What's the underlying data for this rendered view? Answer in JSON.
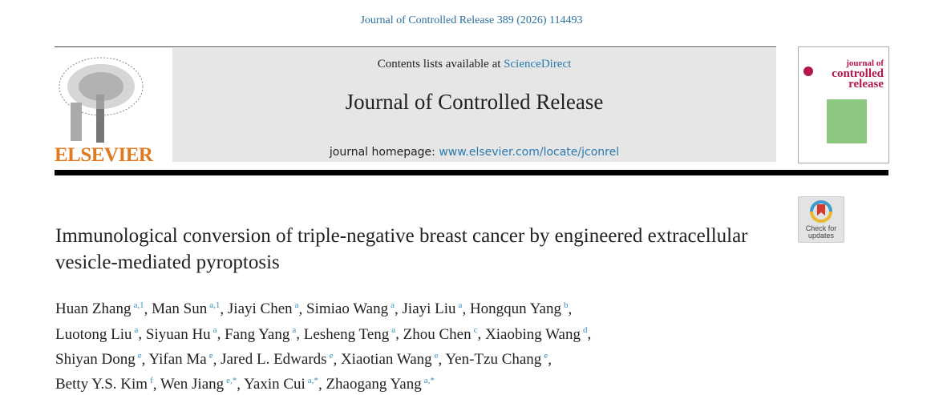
{
  "citation": "Journal of Controlled Release 389 (2026) 114493",
  "header": {
    "publisher_logo_text": "ELSEVIER",
    "contents_prefix": "Contents lists available at ",
    "contents_link": "ScienceDirect",
    "journal_title": "Journal of Controlled Release",
    "homepage_prefix": "journal homepage: ",
    "homepage_link": "www.elsevier.com/locate/jconrel",
    "cover_text": [
      "journal of",
      "controlled",
      "release"
    ]
  },
  "check_updates": {
    "line1": "Check for",
    "line2": "updates"
  },
  "article": {
    "title": "Immunological conversion of triple-negative breast cancer by engineered extracellular vesicle-mediated pyroptosis",
    "authors": [
      {
        "name": "Huan Zhang",
        "sup": "a,1"
      },
      {
        "name": "Man Sun",
        "sup": "a,1"
      },
      {
        "name": "Jiayi Chen",
        "sup": "a"
      },
      {
        "name": "Simiao Wang",
        "sup": "a"
      },
      {
        "name": "Jiayi Liu",
        "sup": "a"
      },
      {
        "name": "Hongqun Yang",
        "sup": "b"
      },
      {
        "name": "Luotong Liu",
        "sup": "a"
      },
      {
        "name": "Siyuan Hu",
        "sup": "a"
      },
      {
        "name": "Fang Yang",
        "sup": "a"
      },
      {
        "name": "Lesheng Teng",
        "sup": "a"
      },
      {
        "name": "Zhou Chen",
        "sup": "c"
      },
      {
        "name": "Xiaobing Wang",
        "sup": "d"
      },
      {
        "name": "Shiyan Dong",
        "sup": "e"
      },
      {
        "name": "Yifan Ma",
        "sup": "e"
      },
      {
        "name": "Jared L. Edwards",
        "sup": "e"
      },
      {
        "name": "Xiaotian Wang",
        "sup": "e"
      },
      {
        "name": "Yen-Tzu Chang",
        "sup": "e"
      },
      {
        "name": "Betty Y.S. Kim",
        "sup": "f"
      },
      {
        "name": "Wen Jiang",
        "sup": "e,*"
      },
      {
        "name": "Yaxin Cui",
        "sup": "a,*"
      },
      {
        "name": "Zhaogang Yang",
        "sup": "a,*"
      }
    ]
  }
}
